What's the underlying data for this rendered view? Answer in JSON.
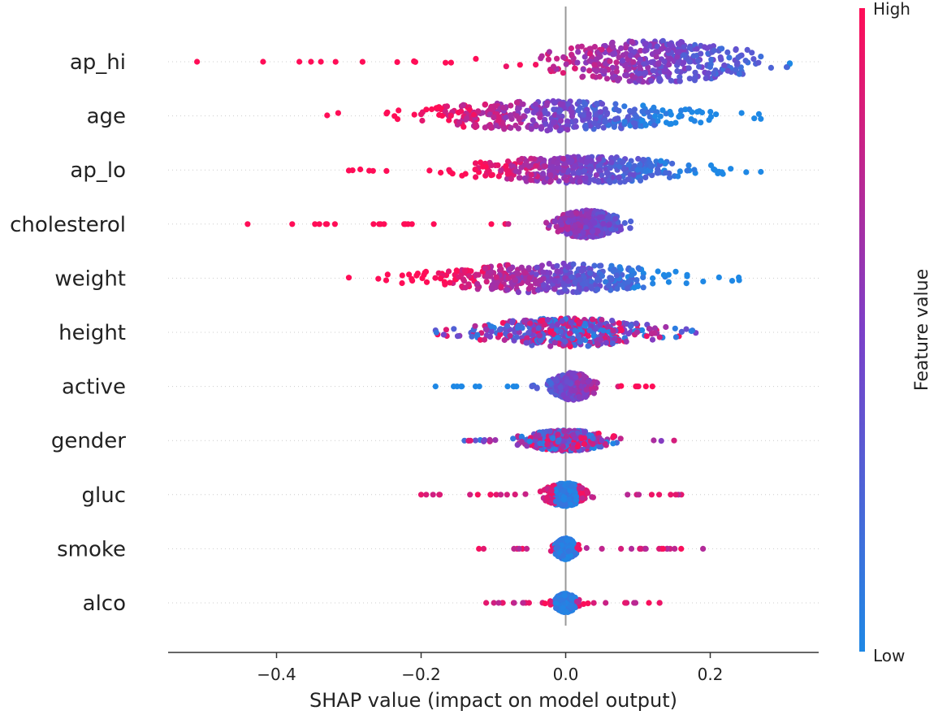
{
  "chart_data": {
    "type": "scatter",
    "subtype": "shap-beeswarm",
    "title": "",
    "xlabel": "SHAP value (impact on model output)",
    "ylabel": "",
    "xlim": [
      -0.55,
      0.35
    ],
    "x_ticks": [
      -0.4,
      -0.2,
      0.0,
      0.2
    ],
    "x_tick_labels": [
      "−0.4",
      "−0.2",
      "0.0",
      "0.2"
    ],
    "grid": false,
    "colorbar": {
      "label": "Feature value",
      "high_label": "High",
      "low_label": "Low",
      "high_color": "#ff0d57",
      "mid_color": "#7c3fc8",
      "low_color": "#1e88e5"
    },
    "features": [
      {
        "name": "ap_hi",
        "min": -0.51,
        "max": 0.31,
        "center": 0.12,
        "spread": 0.1,
        "width": 1.0,
        "low_side": "right"
      },
      {
        "name": "age",
        "min": -0.33,
        "max": 0.27,
        "center": -0.02,
        "spread": 0.13,
        "width": 0.7,
        "low_side": "right"
      },
      {
        "name": "ap_lo",
        "min": -0.3,
        "max": 0.27,
        "center": 0.02,
        "spread": 0.1,
        "width": 0.65,
        "low_side": "right"
      },
      {
        "name": "cholesterol",
        "min": -0.44,
        "max": 0.09,
        "center": 0.03,
        "spread": 0.03,
        "width": 0.65,
        "low_side": "right"
      },
      {
        "name": "weight",
        "min": -0.3,
        "max": 0.24,
        "center": -0.02,
        "spread": 0.11,
        "width": 0.7,
        "low_side": "right"
      },
      {
        "name": "height",
        "min": -0.18,
        "max": 0.18,
        "center": 0.0,
        "spread": 0.08,
        "width": 0.7,
        "low_side": "mixed"
      },
      {
        "name": "active",
        "min": -0.18,
        "max": 0.12,
        "center": 0.01,
        "spread": 0.02,
        "width": 0.65,
        "low_side": "left"
      },
      {
        "name": "gender",
        "min": -0.14,
        "max": 0.15,
        "center": 0.0,
        "spread": 0.04,
        "width": 0.5,
        "low_side": "mixed"
      },
      {
        "name": "gluc",
        "min": -0.2,
        "max": 0.16,
        "center": 0.0,
        "spread": 0.02,
        "width": 0.55,
        "low_side": "center"
      },
      {
        "name": "smoke",
        "min": -0.12,
        "max": 0.19,
        "center": 0.0,
        "spread": 0.01,
        "width": 0.5,
        "low_side": "center"
      },
      {
        "name": "alco",
        "min": -0.11,
        "max": 0.13,
        "center": 0.0,
        "spread": 0.01,
        "width": 0.45,
        "low_side": "center"
      }
    ]
  }
}
